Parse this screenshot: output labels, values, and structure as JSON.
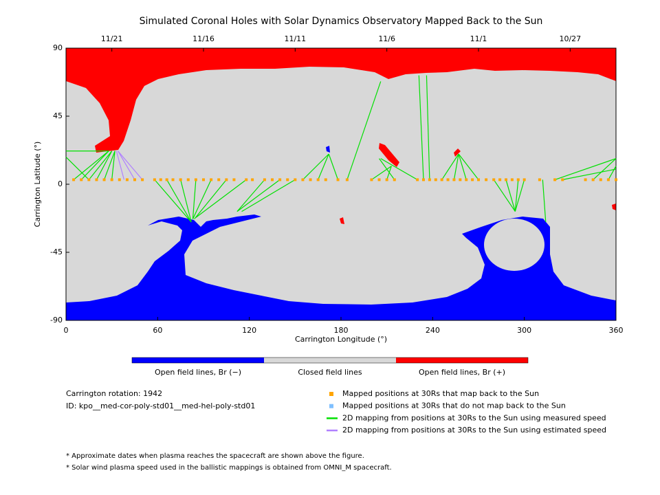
{
  "chart_data": {
    "type": "map",
    "title": "Simulated Coronal Holes with Solar Dynamics Observatory Mapped Back to the Sun",
    "xlabel": "Carrington Longitude (°)",
    "ylabel": "Carrington Latitude (°)",
    "xlim": [
      0,
      360
    ],
    "ylim": [
      -90,
      90
    ],
    "xticks": [
      0,
      60,
      120,
      180,
      240,
      300,
      360
    ],
    "yticks": [
      -90,
      -45,
      0,
      45,
      90
    ],
    "x2ticks": [
      {
        "value": 30,
        "label": "11/21"
      },
      {
        "value": 90,
        "label": "11/16"
      },
      {
        "value": 150,
        "label": "11/11"
      },
      {
        "value": 210,
        "label": "11/6"
      },
      {
        "value": 270,
        "label": "11/1"
      },
      {
        "value": 330,
        "label": "10/27"
      }
    ],
    "colorbar": [
      {
        "label": "Open field lines, Br (−)",
        "color": "#0000ff"
      },
      {
        "label": "Closed field lines",
        "color": "#d8d8d8"
      },
      {
        "label": "Open field lines, Br (+)",
        "color": "#ff0000"
      }
    ],
    "info": [
      "Carrington rotation: 1942",
      "ID: kpo__med-cor-poly-std01__med-hel-poly-std01"
    ],
    "footnotes": [
      "* Approximate dates when plasma reaches the spacecraft are shown above the figure.",
      "* Solar wind plasma speed used in the ballistic mappings is obtained from OMNI_M spacecraft."
    ],
    "series": [
      {
        "name": "Mapped positions at 30Rs that map back to the Sun",
        "type": "scatter",
        "color": "#ffa500",
        "x": [
          5,
          10,
          15,
          20,
          25,
          30,
          35,
          40,
          45,
          50,
          58,
          62,
          66,
          70,
          75,
          80,
          85,
          90,
          95,
          100,
          105,
          110,
          118,
          122,
          130,
          135,
          140,
          145,
          150,
          155,
          160,
          165,
          170,
          178,
          184,
          200,
          205,
          210,
          215,
          230,
          234,
          238,
          242,
          246,
          250,
          254,
          258,
          262,
          266,
          270,
          275,
          280,
          284,
          288,
          292,
          296,
          300,
          310,
          320,
          325,
          340,
          345,
          350,
          355,
          360
        ],
        "y": [
          3,
          3,
          3,
          3,
          3,
          3,
          3,
          3,
          3,
          3,
          3,
          3,
          3,
          3,
          3,
          3,
          3,
          3,
          3,
          3,
          3,
          3,
          3,
          3,
          3,
          3,
          3,
          3,
          3,
          3,
          3,
          3,
          3,
          3,
          3,
          3,
          3,
          3,
          3,
          3,
          3,
          3,
          3,
          3,
          3,
          3,
          3,
          3,
          3,
          3,
          3,
          3,
          3,
          3,
          3,
          3,
          3,
          3,
          3,
          3,
          3,
          3,
          3,
          3,
          3
        ]
      },
      {
        "name": "Mapped positions at 30Rs that do not map back to the Sun",
        "type": "scatter",
        "color": "#80c0ff",
        "x": [],
        "y": []
      },
      {
        "name": "2D mapping from positions at 30Rs to the Sun using measured speed",
        "type": "segments",
        "color": "#00e000",
        "x0": [
          5,
          10,
          15,
          20,
          25,
          30,
          0,
          0,
          58,
          66,
          75,
          85,
          95,
          105,
          118,
          130,
          140,
          150,
          155,
          165,
          178,
          184,
          200,
          210,
          215,
          230,
          238,
          234,
          246,
          254,
          262,
          270,
          280,
          288,
          296,
          300,
          312,
          325,
          345,
          355,
          320
        ],
        "y0": [
          3,
          3,
          3,
          3,
          3,
          3,
          18,
          22,
          3,
          3,
          3,
          3,
          3,
          3,
          3,
          3,
          3,
          3,
          3,
          3,
          3,
          3,
          3,
          3,
          3,
          3,
          3,
          3,
          3,
          3,
          3,
          3,
          3,
          3,
          3,
          3,
          3,
          3,
          3,
          3,
          3
        ],
        "x1": [
          28,
          28,
          30,
          30,
          32,
          32,
          15,
          28,
          82,
          82,
          82,
          83,
          83,
          84,
          85,
          112,
          112,
          115,
          172,
          172,
          172,
          206,
          213,
          213,
          205,
          206,
          236,
          231,
          257,
          257,
          257,
          257,
          294,
          294,
          294,
          294,
          314,
          360,
          360,
          360,
          360
        ],
        "y1": [
          22,
          22,
          22,
          22,
          22,
          22,
          3,
          22,
          -25,
          -25,
          -25,
          -23,
          -23,
          -23,
          -22,
          -18,
          -18,
          -18,
          20,
          20,
          20,
          68,
          12,
          12,
          17,
          17,
          72,
          72,
          20,
          20,
          20,
          20,
          -18,
          -18,
          -18,
          -18,
          -25,
          10,
          17,
          12,
          17
        ]
      },
      {
        "name": "2D mapping from positions at 30Rs to the Sun using estimated speed",
        "type": "segments",
        "color": "#b080ff",
        "x0": [
          38,
          45,
          50
        ],
        "y0": [
          3,
          3,
          3
        ],
        "x1": [
          33,
          34,
          34
        ],
        "y1": [
          22,
          22,
          22
        ]
      }
    ]
  }
}
